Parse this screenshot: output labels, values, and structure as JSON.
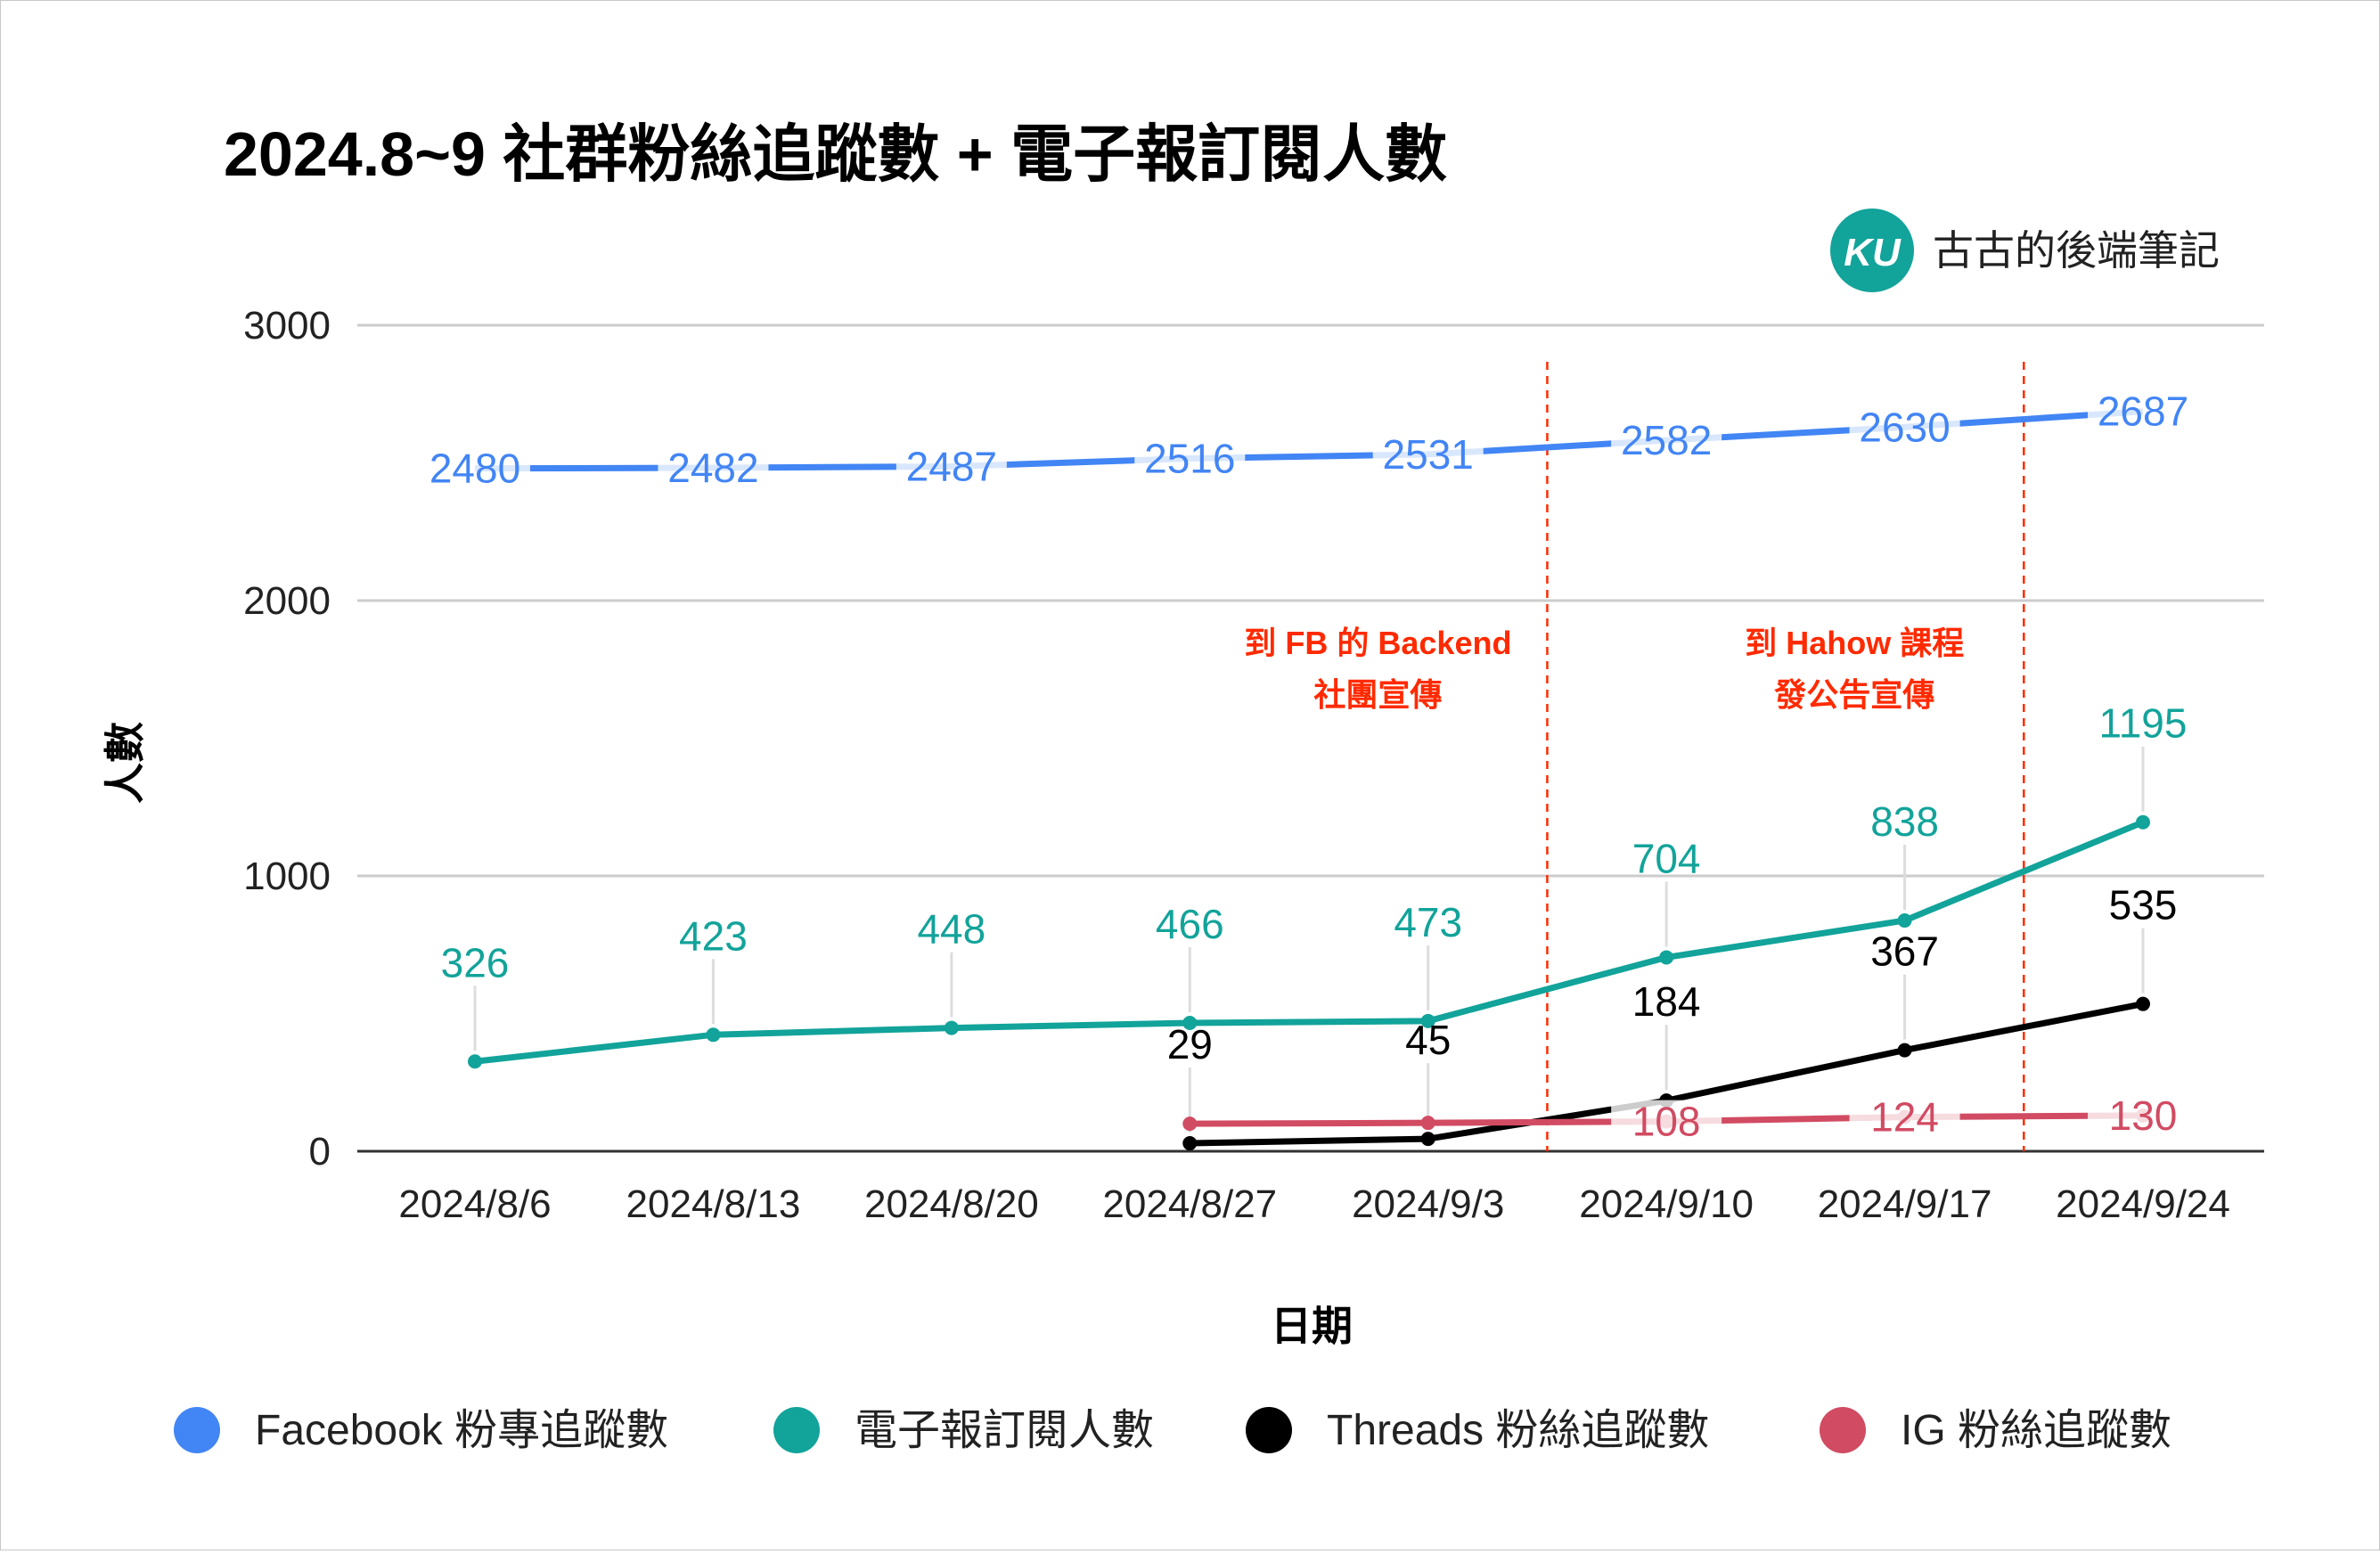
{
  "chart_data": {
    "type": "line",
    "title": "2024.8~9 社群粉絲追蹤數 + 電子報訂閱人數",
    "xlabel": "日期",
    "ylabel": "人數",
    "ylim": [
      0,
      3000
    ],
    "yticks": [
      "0",
      "1000",
      "2000",
      "3000"
    ],
    "grid": true,
    "legend_position": "bottom",
    "categories": [
      "2024/8/6",
      "2024/8/13",
      "2024/8/20",
      "2024/8/27",
      "2024/9/3",
      "2024/9/10",
      "2024/9/17",
      "2024/9/24"
    ],
    "series": [
      {
        "name": "Facebook 粉專追蹤數",
        "color": "#4285f4",
        "values": [
          2480,
          2482,
          2487,
          2516,
          2531,
          2582,
          2630,
          2687
        ]
      },
      {
        "name": "電子報訂閱人數",
        "color": "#12a39a",
        "values": [
          326,
          423,
          448,
          466,
          473,
          704,
          838,
          1195
        ]
      },
      {
        "name": "Threads 粉絲追蹤數",
        "color": "#000000",
        "values": [
          null,
          null,
          null,
          29,
          45,
          184,
          367,
          535
        ]
      },
      {
        "name": "IG 粉絲追蹤數",
        "color": "#d14b62",
        "values": [
          null,
          null,
          null,
          100,
          103,
          108,
          124,
          130
        ],
        "labels": [
          "",
          "",
          "",
          "",
          "",
          "108",
          "124",
          "130"
        ]
      }
    ],
    "annotations": [
      {
        "lines": [
          "到 FB 的 Backend",
          "社團宣傳"
        ],
        "between": [
          "2024/9/3",
          "2024/9/10"
        ],
        "color": "#ff2a00"
      },
      {
        "lines": [
          "到 Hahow 課程",
          "發公告宣傳"
        ],
        "between": [
          "2024/9/17",
          "2024/9/24"
        ],
        "color": "#ff2a00"
      }
    ]
  },
  "brand": {
    "logo_text": "KU",
    "name": "古古的後端筆記",
    "logo_color": "#12a39a"
  }
}
